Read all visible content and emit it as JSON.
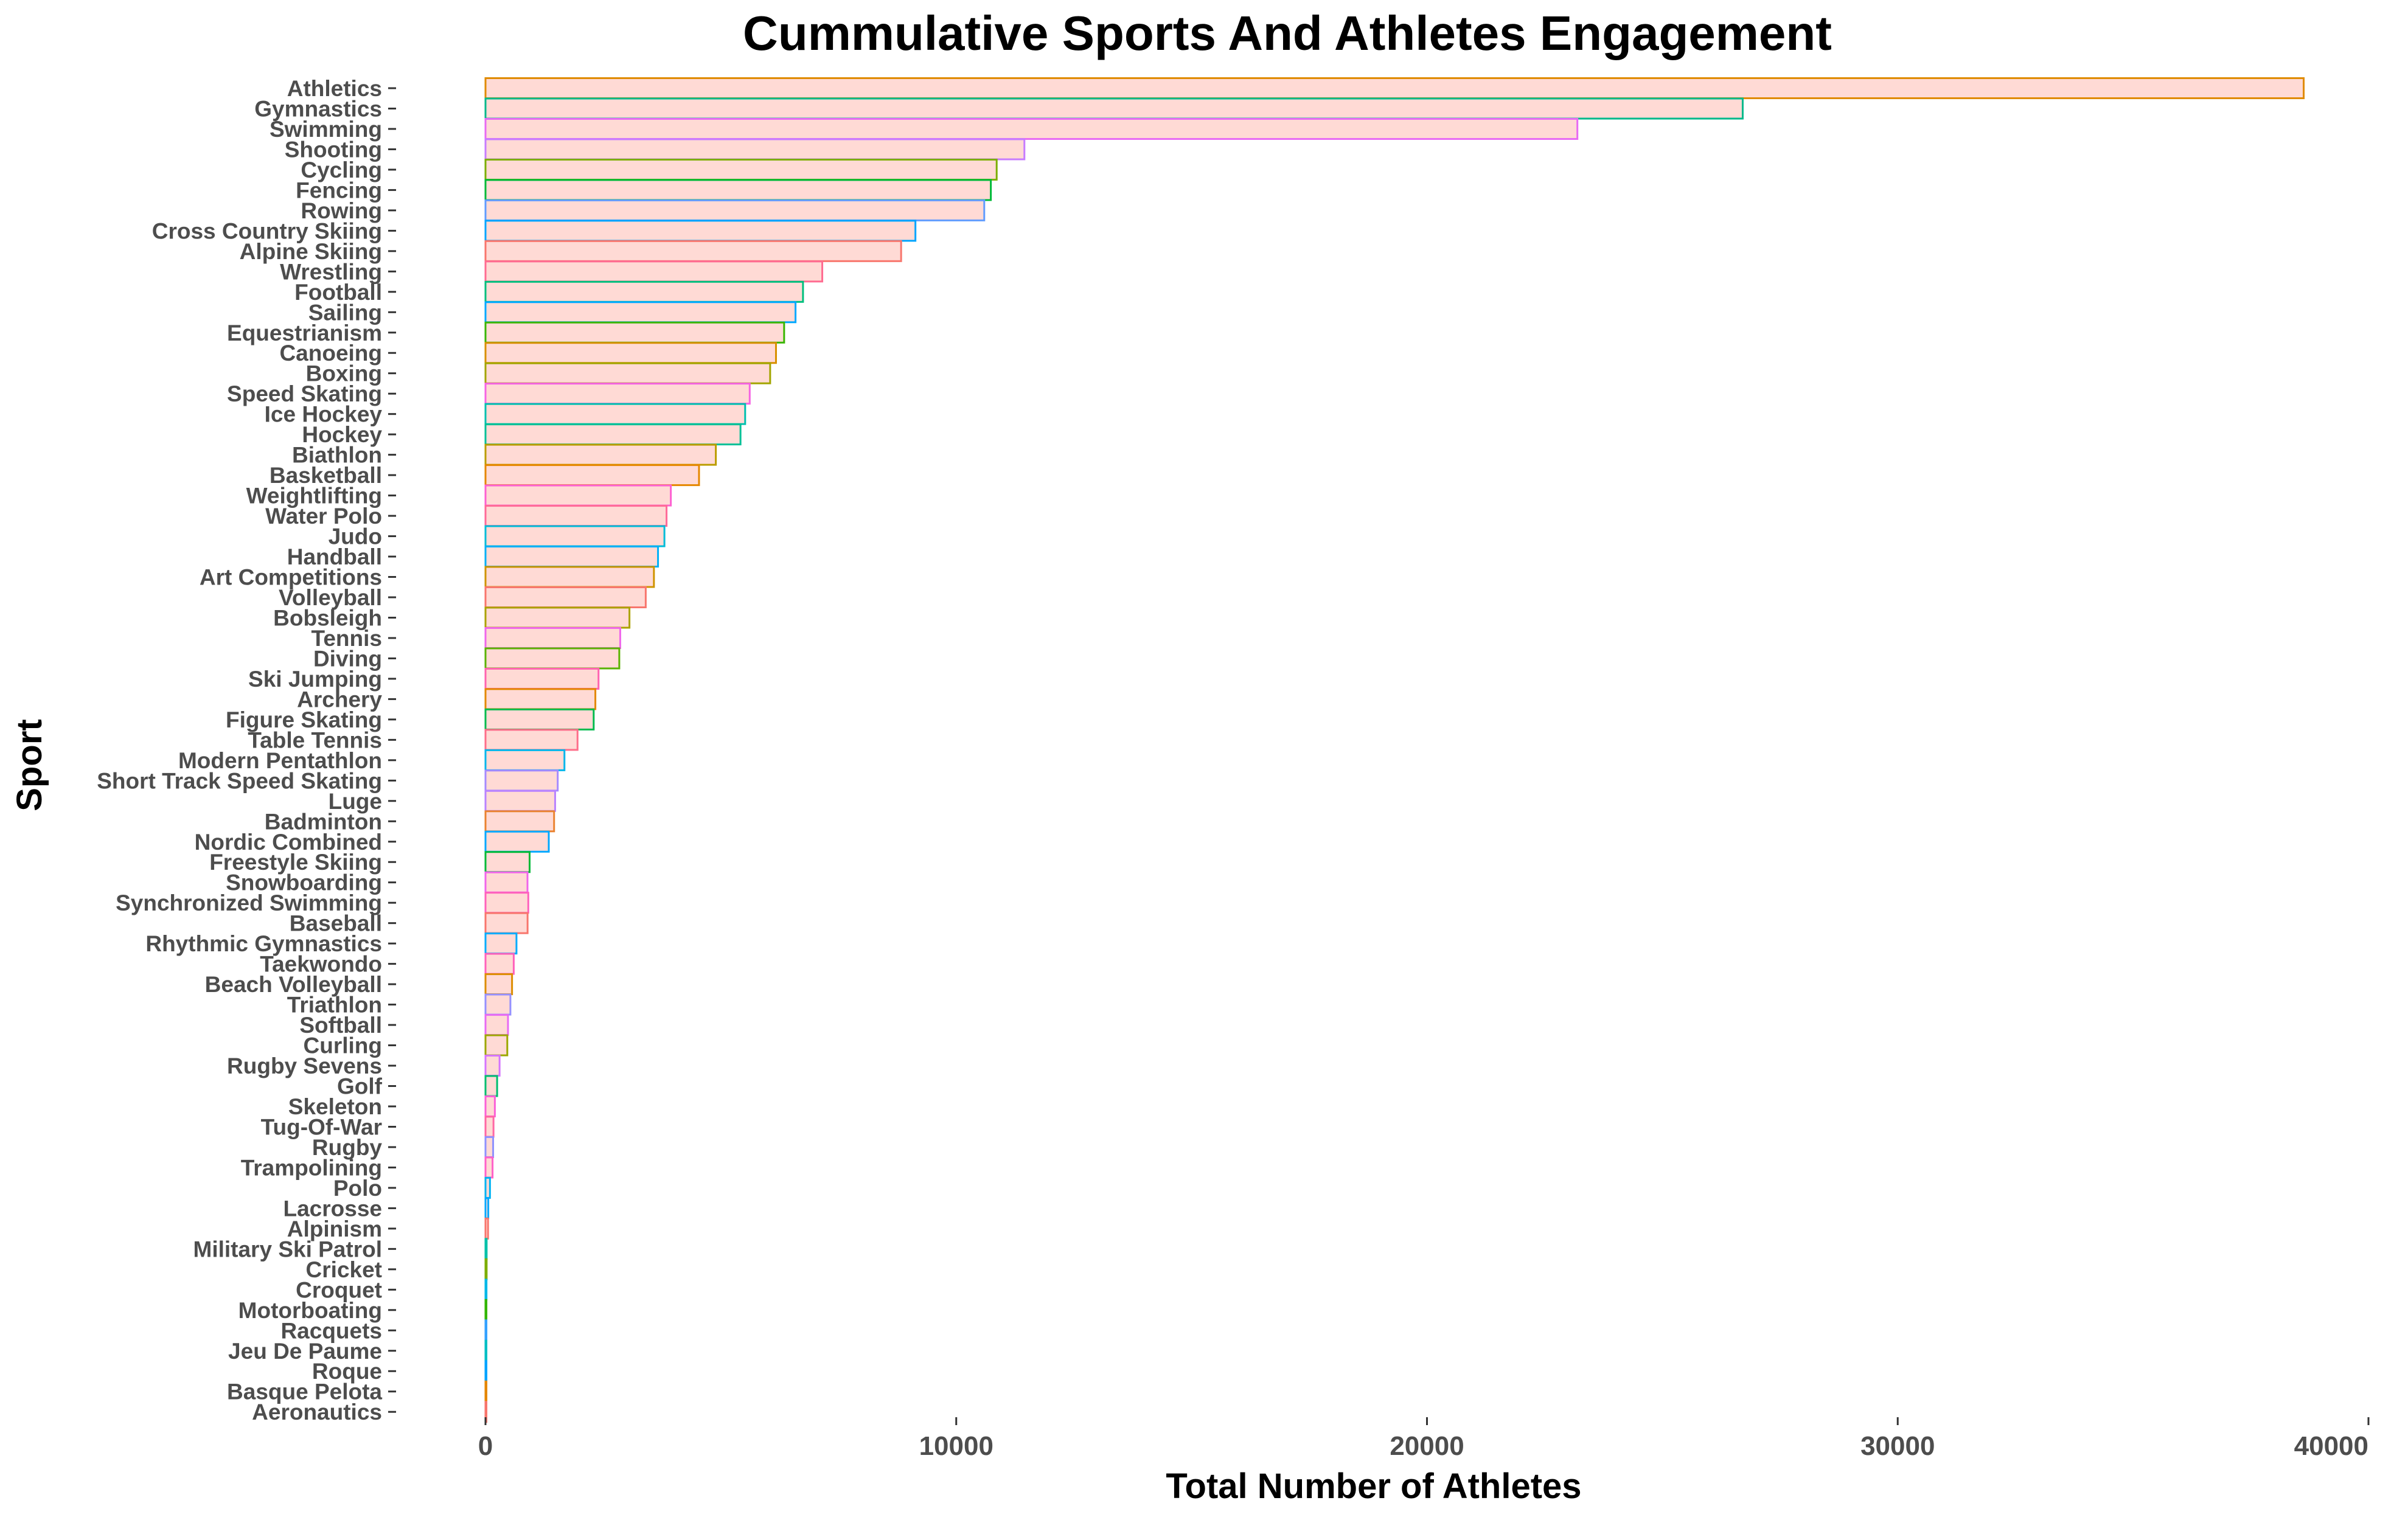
{
  "chart_data": {
    "type": "bar",
    "orientation": "horizontal",
    "title": "Cummulative Sports And Athletes Engagement",
    "xlabel": "Total Number of Athletes",
    "ylabel": "Sport",
    "xlim": [
      0,
      40000
    ],
    "xticks": [
      "0",
      "10000",
      "20000",
      "30000",
      "40000"
    ],
    "grid": false,
    "legend": "none",
    "bar_fill": "#ffdad5",
    "categories": [
      "Athletics",
      "Gymnastics",
      "Swimming",
      "Shooting",
      "Cycling",
      "Fencing",
      "Rowing",
      "Cross Country Skiing",
      "Alpine Skiing",
      "Wrestling",
      "Football",
      "Sailing",
      "Equestrianism",
      "Canoeing",
      "Boxing",
      "Speed Skating",
      "Ice Hockey",
      "Hockey",
      "Biathlon",
      "Basketball",
      "Weightlifting",
      "Water Polo",
      "Judo",
      "Handball",
      "Art Competitions",
      "Volleyball",
      "Bobsleigh",
      "Tennis",
      "Diving",
      "Ski Jumping",
      "Archery",
      "Figure Skating",
      "Table Tennis",
      "Modern Pentathlon",
      "Short Track Speed Skating",
      "Luge",
      "Badminton",
      "Nordic Combined",
      "Freestyle Skiing",
      "Snowboarding",
      "Synchronized Swimming",
      "Baseball",
      "Rhythmic Gymnastics",
      "Taekwondo",
      "Beach Volleyball",
      "Triathlon",
      "Softball",
      "Curling",
      "Rugby Sevens",
      "Golf",
      "Skeleton",
      "Tug-Of-War",
      "Rugby",
      "Trampolining",
      "Polo",
      "Lacrosse",
      "Alpinism",
      "Military Ski Patrol",
      "Cricket",
      "Croquet",
      "Motorboating",
      "Racquets",
      "Jeu De Paume",
      "Roque",
      "Basque Pelota",
      "Aeronautics"
    ],
    "values": [
      38624,
      26707,
      23195,
      11448,
      10859,
      10735,
      10595,
      9133,
      8829,
      7154,
      6745,
      6586,
      6344,
      6171,
      6047,
      5613,
      5516,
      5417,
      4893,
      4536,
      3937,
      3846,
      3801,
      3665,
      3578,
      3404,
      3058,
      2862,
      2842,
      2401,
      2334,
      2298,
      1955,
      1677,
      1534,
      1479,
      1457,
      1344,
      937,
      892,
      909,
      894,
      658,
      600,
      564,
      529,
      478,
      463,
      299,
      247,
      199,
      170,
      162,
      150,
      95,
      59,
      54,
      24,
      24,
      21,
      17,
      12,
      11,
      4,
      4,
      1
    ],
    "series_colors": [
      "#e08b00",
      "#00b98b",
      "#e76bf3",
      "#c77cff",
      "#7cae00",
      "#00ba38",
      "#619cff",
      "#00a5ff",
      "#f8766d",
      "#ff6c91",
      "#00bf7d",
      "#00a9ff",
      "#39b600",
      "#d89000",
      "#a3a500",
      "#f564e3",
      "#00c0af",
      "#00c097",
      "#bb9d00",
      "#e58700",
      "#fd61d1",
      "#ff6a98",
      "#00bcd8",
      "#00b0f6",
      "#cf9400",
      "#f8766d",
      "#aba300",
      "#ef67eb",
      "#5bb300",
      "#ff64b0",
      "#e38900",
      "#00bb4e",
      "#fe6e8a",
      "#00b6eb",
      "#a58aff",
      "#b983ff",
      "#ea8331",
      "#00a8ff",
      "#00ba38",
      "#f066ea",
      "#ff62bc",
      "#f8766d",
      "#00acfc",
      "#ff62bc",
      "#dc8d00",
      "#9590ff",
      "#e76bf3",
      "#9da700",
      "#d575fe",
      "#00be70",
      "#fb61d7",
      "#ff67a4",
      "#8f91ff",
      "#ff61c9",
      "#00b3f2",
      "#00a9ff",
      "#f8766d",
      "#00c1a9",
      "#7cae00",
      "#00b8e7",
      "#33b600",
      "#35a2ff",
      "#00bfc4",
      "#00a4ff",
      "#e58700",
      "#f8766d"
    ]
  }
}
